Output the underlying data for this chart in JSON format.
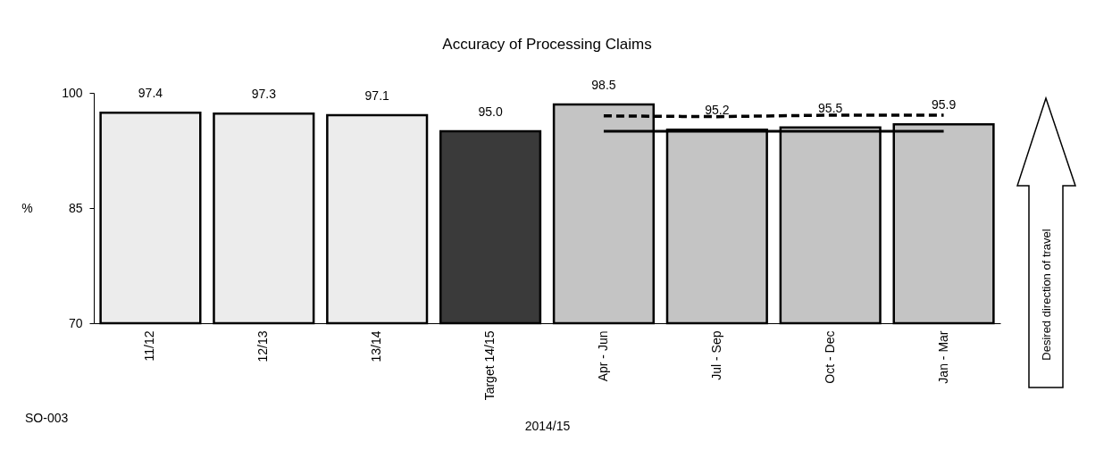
{
  "chart_data": {
    "type": "bar",
    "title": "Accuracy of Processing Claims",
    "xlabel": "2014/15",
    "ylabel": "%",
    "categories": [
      "11/12",
      "12/13",
      "13/14",
      "Target 14/15",
      "Apr - Jun",
      "Jul - Sep",
      "Oct - Dec",
      "Jan - Mar"
    ],
    "series": [
      {
        "values": [
          97.4,
          97.3,
          97.1,
          95.0,
          98.5,
          95.2,
          95.5,
          95.9
        ],
        "colors": [
          "#ececec",
          "#ececec",
          "#ececec",
          "#3a3a3a",
          "#c4c4c4",
          "#c4c4c4",
          "#c4c4c4",
          "#c4c4c4"
        ],
        "value_labels": [
          "97.4",
          "97.3",
          "97.1",
          "95.0",
          "98.5",
          "95.2",
          "95.5",
          "95.9"
        ]
      },
      {
        "type": "line",
        "color": "#000000",
        "line_style": "dashed",
        "values": [
          null,
          null,
          null,
          null,
          97.0,
          96.9,
          97.1,
          97.1
        ]
      },
      {
        "type": "line",
        "color": "#000000",
        "line_style": "solid",
        "values": [
          null,
          null,
          null,
          null,
          95.0,
          95.0,
          95.0,
          95.0
        ]
      }
    ],
    "ylim": [
      70,
      100
    ],
    "yticks": [
      70,
      85,
      100
    ],
    "grid": false,
    "marker": "none",
    "annotations": [
      "SO-003",
      "Desired direction of travel"
    ]
  }
}
